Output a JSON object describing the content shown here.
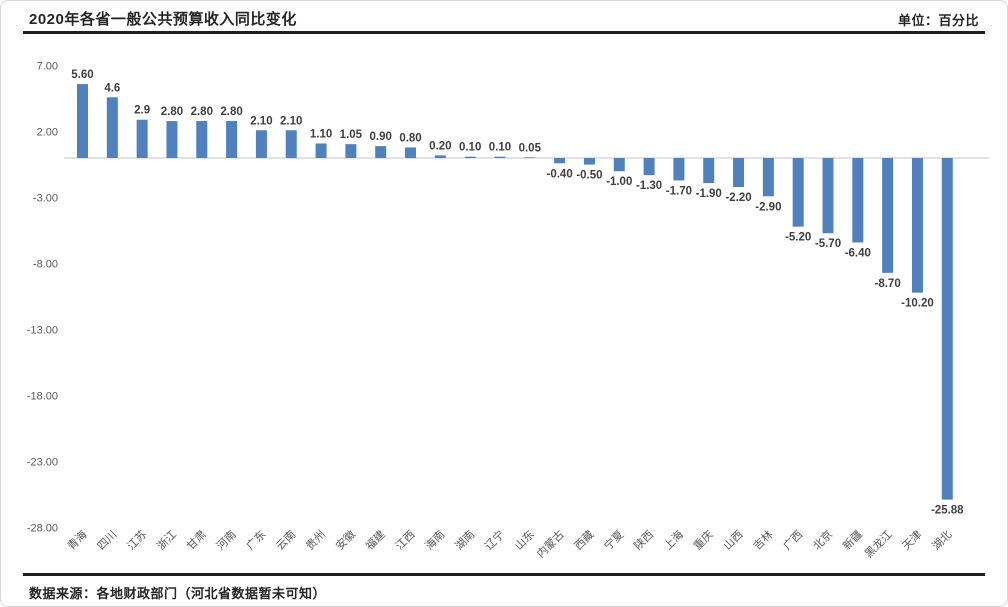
{
  "header": {
    "title": "2020年各省一般公共预算收入同比变化",
    "unit_label": "单位：百分比"
  },
  "footer": {
    "source": "数据来源：各地财政部门（河北省数据暂未可知）"
  },
  "chart_data": {
    "type": "bar",
    "title": "2020年各省一般公共预算收入同比变化",
    "unit": "百分比",
    "categories": [
      "青海",
      "四川",
      "江苏",
      "浙江",
      "甘肃",
      "河南",
      "广东",
      "云南",
      "贵州",
      "安徽",
      "福建",
      "江西",
      "海南",
      "湖南",
      "辽宁",
      "山东",
      "内蒙古",
      "西藏",
      "宁夏",
      "陕西",
      "上海",
      "重庆",
      "山西",
      "吉林",
      "广西",
      "北京",
      "新疆",
      "黑龙江",
      "天津",
      "湖北"
    ],
    "values": [
      5.6,
      4.6,
      2.9,
      2.8,
      2.8,
      2.8,
      2.1,
      2.1,
      1.1,
      1.05,
      0.9,
      0.8,
      0.2,
      0.1,
      0.1,
      0.05,
      -0.4,
      -0.5,
      -1.0,
      -1.3,
      -1.7,
      -1.9,
      -2.2,
      -2.9,
      -5.2,
      -5.7,
      -6.4,
      -8.7,
      -10.2,
      -25.88
    ],
    "value_labels": [
      "5.60",
      "4.6",
      "2.9",
      "2.80",
      "2.80",
      "2.80",
      "2.10",
      "2.10",
      "1.10",
      "1.05",
      "0.90",
      "0.80",
      "0.20",
      "0.10",
      "0.10",
      "0.05",
      "-0.40",
      "-0.50",
      "-1.00",
      "-1.30",
      "-1.70",
      "-1.90",
      "-2.20",
      "-2.90",
      "-5.20",
      "-5.70",
      "-6.40",
      "-8.70",
      "-10.20",
      "-25.88"
    ],
    "yticks": [
      7,
      2,
      -3,
      -8,
      -13,
      -18,
      -23,
      -28
    ],
    "ytick_labels": [
      "7.00",
      "2.00",
      "-3.00",
      "-8.00",
      "-13.00",
      "-18.00",
      "-23.00",
      "-28.00"
    ],
    "ylim": [
      -28,
      7
    ],
    "xlabel": "",
    "ylabel": "",
    "grid": "zero-line-only",
    "legend": "none",
    "bar_color": "#4E81BD",
    "zero_line_color": "#D9D9D9",
    "value_label_color": "#3F3F3F",
    "tick_label_color": "#595959"
  }
}
